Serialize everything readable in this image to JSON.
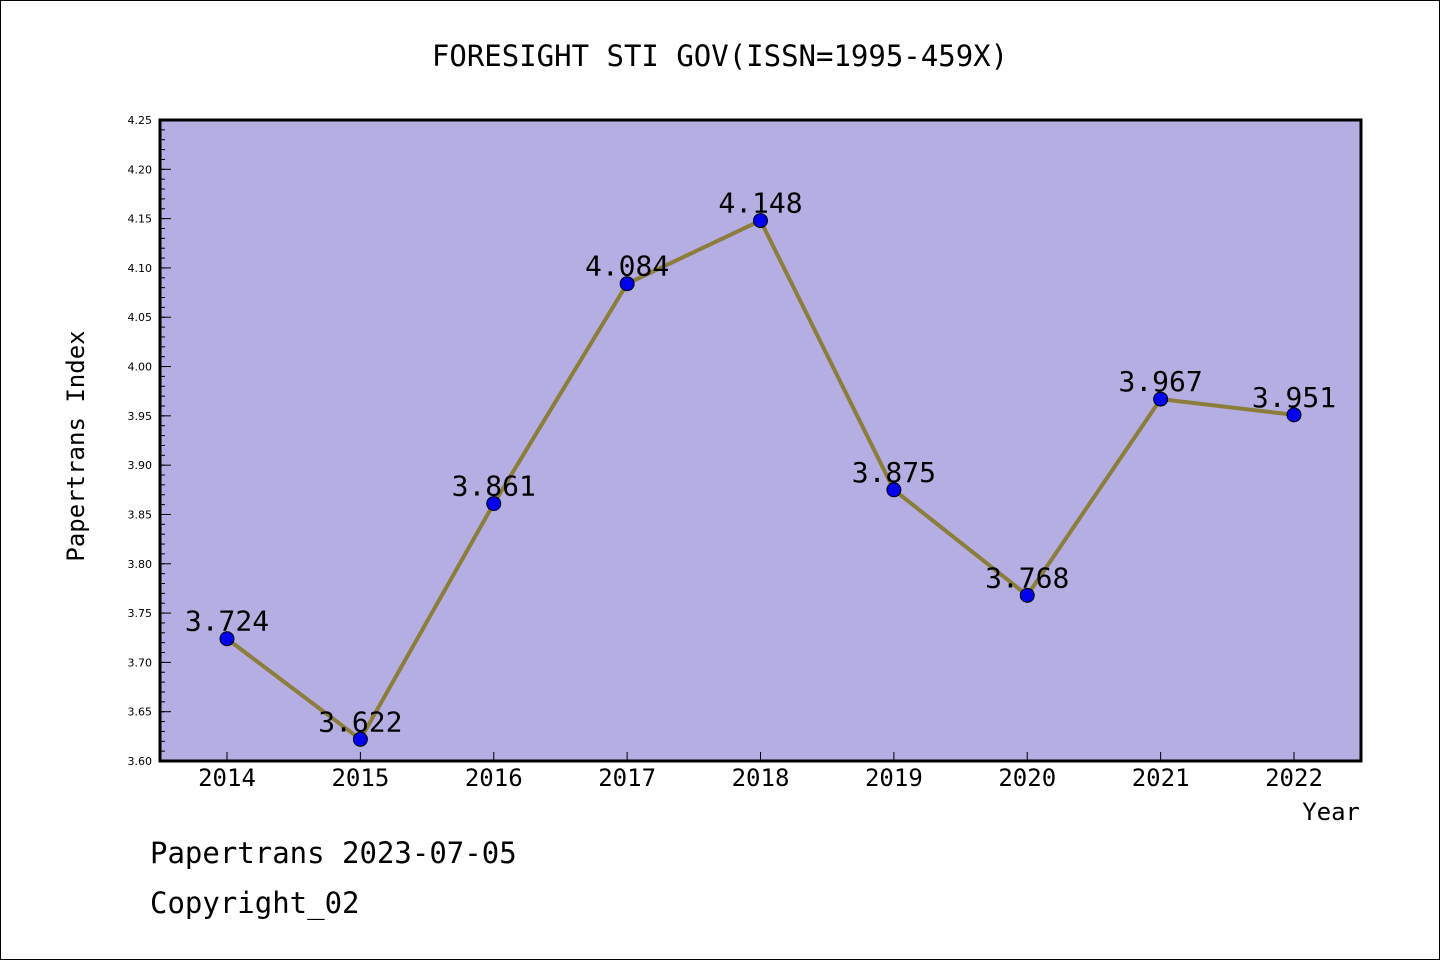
{
  "chart_data": {
    "type": "line",
    "title": "FORESIGHT STI GOV(ISSN=1995-459X)",
    "xlabel": "Year",
    "ylabel": "Papertrans Index",
    "x": [
      "2014",
      "2015",
      "2016",
      "2017",
      "2018",
      "2019",
      "2020",
      "2021",
      "2022"
    ],
    "series": [
      {
        "values": [
          3.724,
          3.622,
          3.861,
          4.084,
          4.148,
          3.875,
          3.768,
          3.967,
          3.951
        ]
      }
    ],
    "data_labels": [
      "3.724",
      "3.622",
      "3.861",
      "4.084",
      "4.148",
      "3.875",
      "3.768",
      "3.967",
      "3.951"
    ],
    "ylim": [
      3.6,
      4.25
    ],
    "yticks": [
      "3.60",
      "3.65",
      "3.70",
      "3.75",
      "3.80",
      "3.85",
      "3.90",
      "3.95",
      "4.00",
      "4.05",
      "4.10",
      "4.15",
      "4.20",
      "4.25"
    ],
    "grid": false,
    "legend": "none",
    "colors": {
      "plot_background": "#b5aee2",
      "line": "#8b7d3a",
      "marker": "#0000ee"
    }
  },
  "footer": {
    "line1": "Papertrans 2023-07-05",
    "line2": "Copyright_02"
  }
}
